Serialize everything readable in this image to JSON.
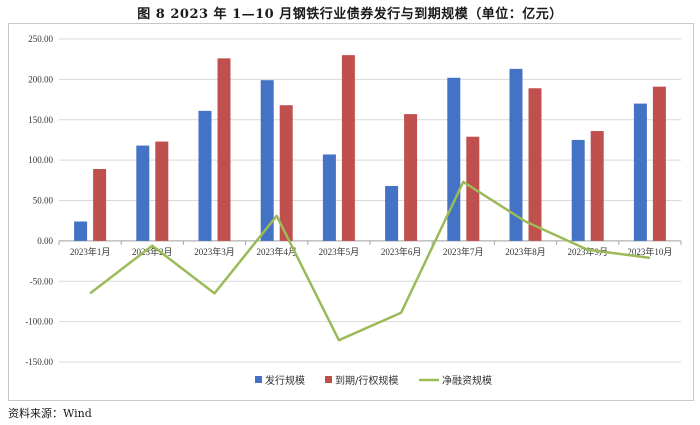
{
  "title": "图 8   2023 年 1—10 月钢铁行业债券发行与到期规模（单位：亿元）",
  "source": "资料来源：Wind",
  "chart_data": {
    "type": "bar",
    "categories": [
      "2023年1月",
      "2023年2月",
      "2023年3月",
      "2023年4月",
      "2023年5月",
      "2023年6月",
      "2023年7月",
      "2023年8月",
      "2023年9月",
      "2023年10月"
    ],
    "series": [
      {
        "name": "发行规模",
        "type": "bar",
        "color": "#4472c4",
        "values": [
          24,
          118,
          161,
          199,
          107,
          68,
          202,
          213,
          125,
          170
        ]
      },
      {
        "name": "到期/行权规模",
        "type": "bar",
        "color": "#c0504d",
        "values": [
          89,
          123,
          226,
          168,
          230,
          157,
          129,
          189,
          136,
          191
        ]
      },
      {
        "name": "净融资规模",
        "type": "line",
        "color": "#9bbb59",
        "values": [
          -65,
          -6,
          -65,
          31,
          -123,
          -89,
          73,
          24,
          -11,
          -21
        ]
      }
    ],
    "ylim": [
      -150,
      250
    ],
    "yticks": [
      "250.00",
      "200.00",
      "150.00",
      "100.00",
      "50.00",
      "0.00",
      "-50.00",
      "-100.00",
      "-150.00"
    ],
    "grid": true,
    "legend": "bottom"
  }
}
